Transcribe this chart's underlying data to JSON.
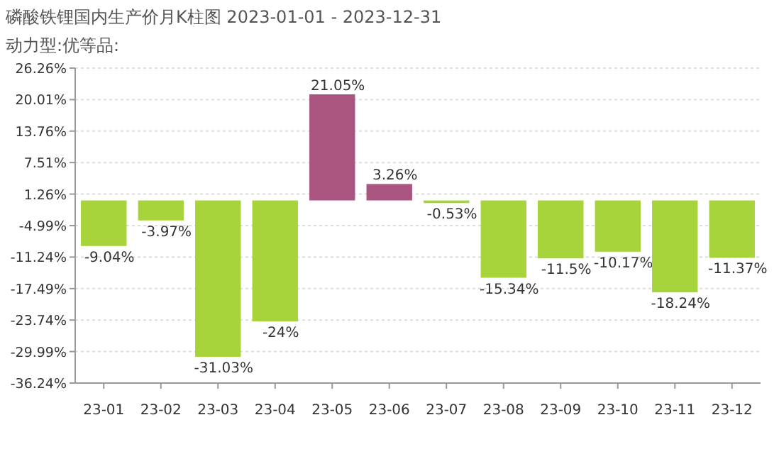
{
  "chart_data": {
    "type": "bar",
    "title": "磷酸铁锂国内生产价月K柱图 2023-01-01 - 2023-12-31",
    "subtitle": "动力型:优等品:",
    "categories": [
      "23-01",
      "23-02",
      "23-03",
      "23-04",
      "23-05",
      "23-06",
      "23-07",
      "23-08",
      "23-09",
      "23-10",
      "23-11",
      "23-12"
    ],
    "values": [
      -9.04,
      -3.97,
      -31.03,
      -24,
      21.05,
      3.26,
      -0.53,
      -15.34,
      -11.5,
      -10.17,
      -18.24,
      -11.37
    ],
    "colors": [
      "#a6d43a",
      "#a6d43a",
      "#a6d43a",
      "#a6d43a",
      "#a9557f",
      "#a9557f",
      "#a6d43a",
      "#a6d43a",
      "#a6d43a",
      "#a6d43a",
      "#a6d43a",
      "#a6d43a"
    ],
    "value_labels": [
      "-9.04%",
      "-3.97%",
      "-31.03%",
      "-24%",
      "21.05%",
      "3.26%",
      "-0.53%",
      "-15.34%",
      "-11.5%",
      "-10.17%",
      "-18.24%",
      "-11.37%"
    ],
    "ylim": [
      -36.24,
      26.26
    ],
    "yticks": [
      {
        "value": 26.26,
        "label": "26.26%"
      },
      {
        "value": 20.01,
        "label": "20.01%"
      },
      {
        "value": 13.76,
        "label": "13.76%"
      },
      {
        "value": 7.51,
        "label": "7.51%"
      },
      {
        "value": 1.26,
        "label": "1.26%"
      },
      {
        "value": -4.99,
        "label": "-4.99%"
      },
      {
        "value": -11.24,
        "label": "-11.24%"
      },
      {
        "value": -17.49,
        "label": "-17.49%"
      },
      {
        "value": -23.74,
        "label": "-23.74%"
      },
      {
        "value": -29.99,
        "label": "-29.99%"
      },
      {
        "value": -36.24,
        "label": "-36.24%"
      }
    ],
    "grid": "y"
  }
}
